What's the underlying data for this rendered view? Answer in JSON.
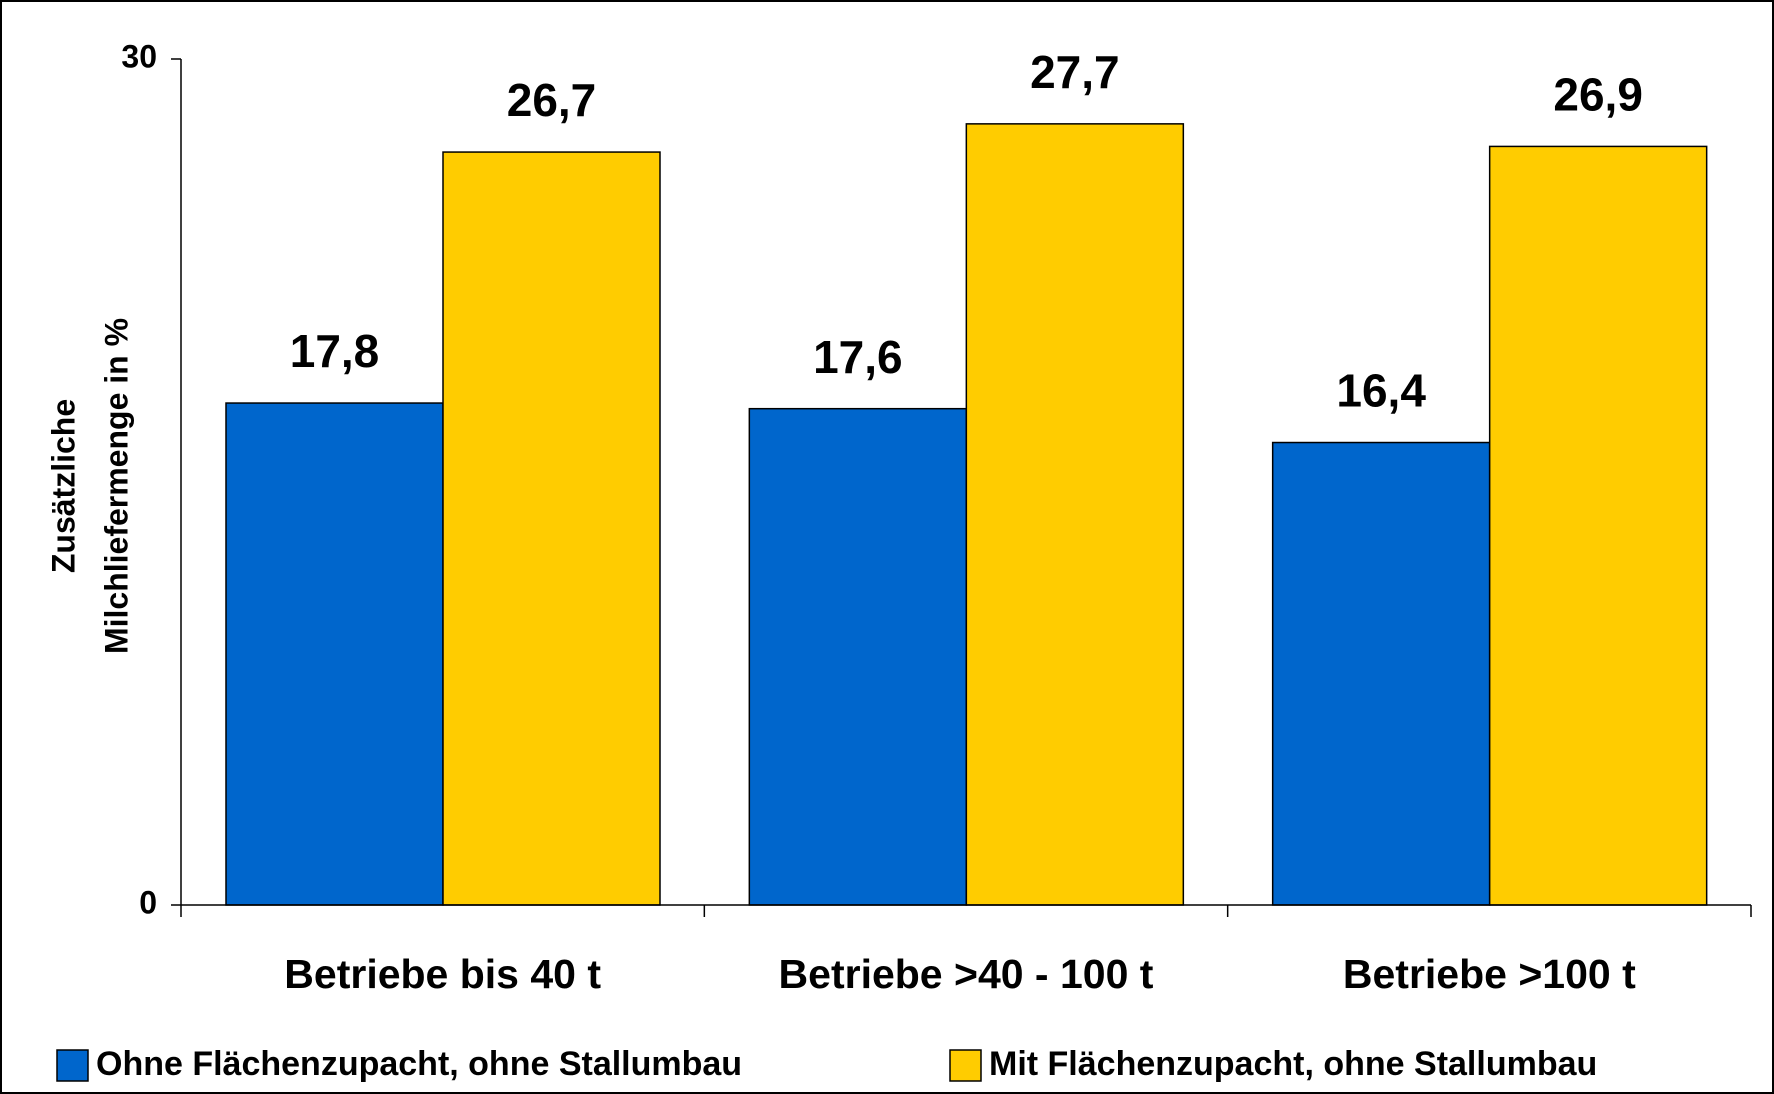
{
  "chart_data": {
    "type": "bar",
    "ylabel": [
      "Zusätzliche",
      "Milchliefermenge in %"
    ],
    "categories": [
      "Betriebe bis 40 t",
      "Betriebe >40 - 100 t",
      "Betriebe >100 t"
    ],
    "series": [
      {
        "name": "Ohne Flächenzupacht, ohne Stallumbau",
        "color": "#0066cc",
        "values": [
          17.8,
          17.6,
          16.4
        ],
        "value_labels": [
          "17,8",
          "17,6",
          "16,4"
        ]
      },
      {
        "name": "Mit Flächenzupacht, ohne Stallumbau",
        "color": "#ffcc00",
        "values": [
          26.7,
          27.7,
          26.9
        ],
        "value_labels": [
          "26,7",
          "27,7",
          "26,9"
        ]
      }
    ],
    "ylim": [
      0,
      30
    ],
    "yticks": [
      0,
      30
    ],
    "grid": false,
    "legend": "bottom"
  }
}
